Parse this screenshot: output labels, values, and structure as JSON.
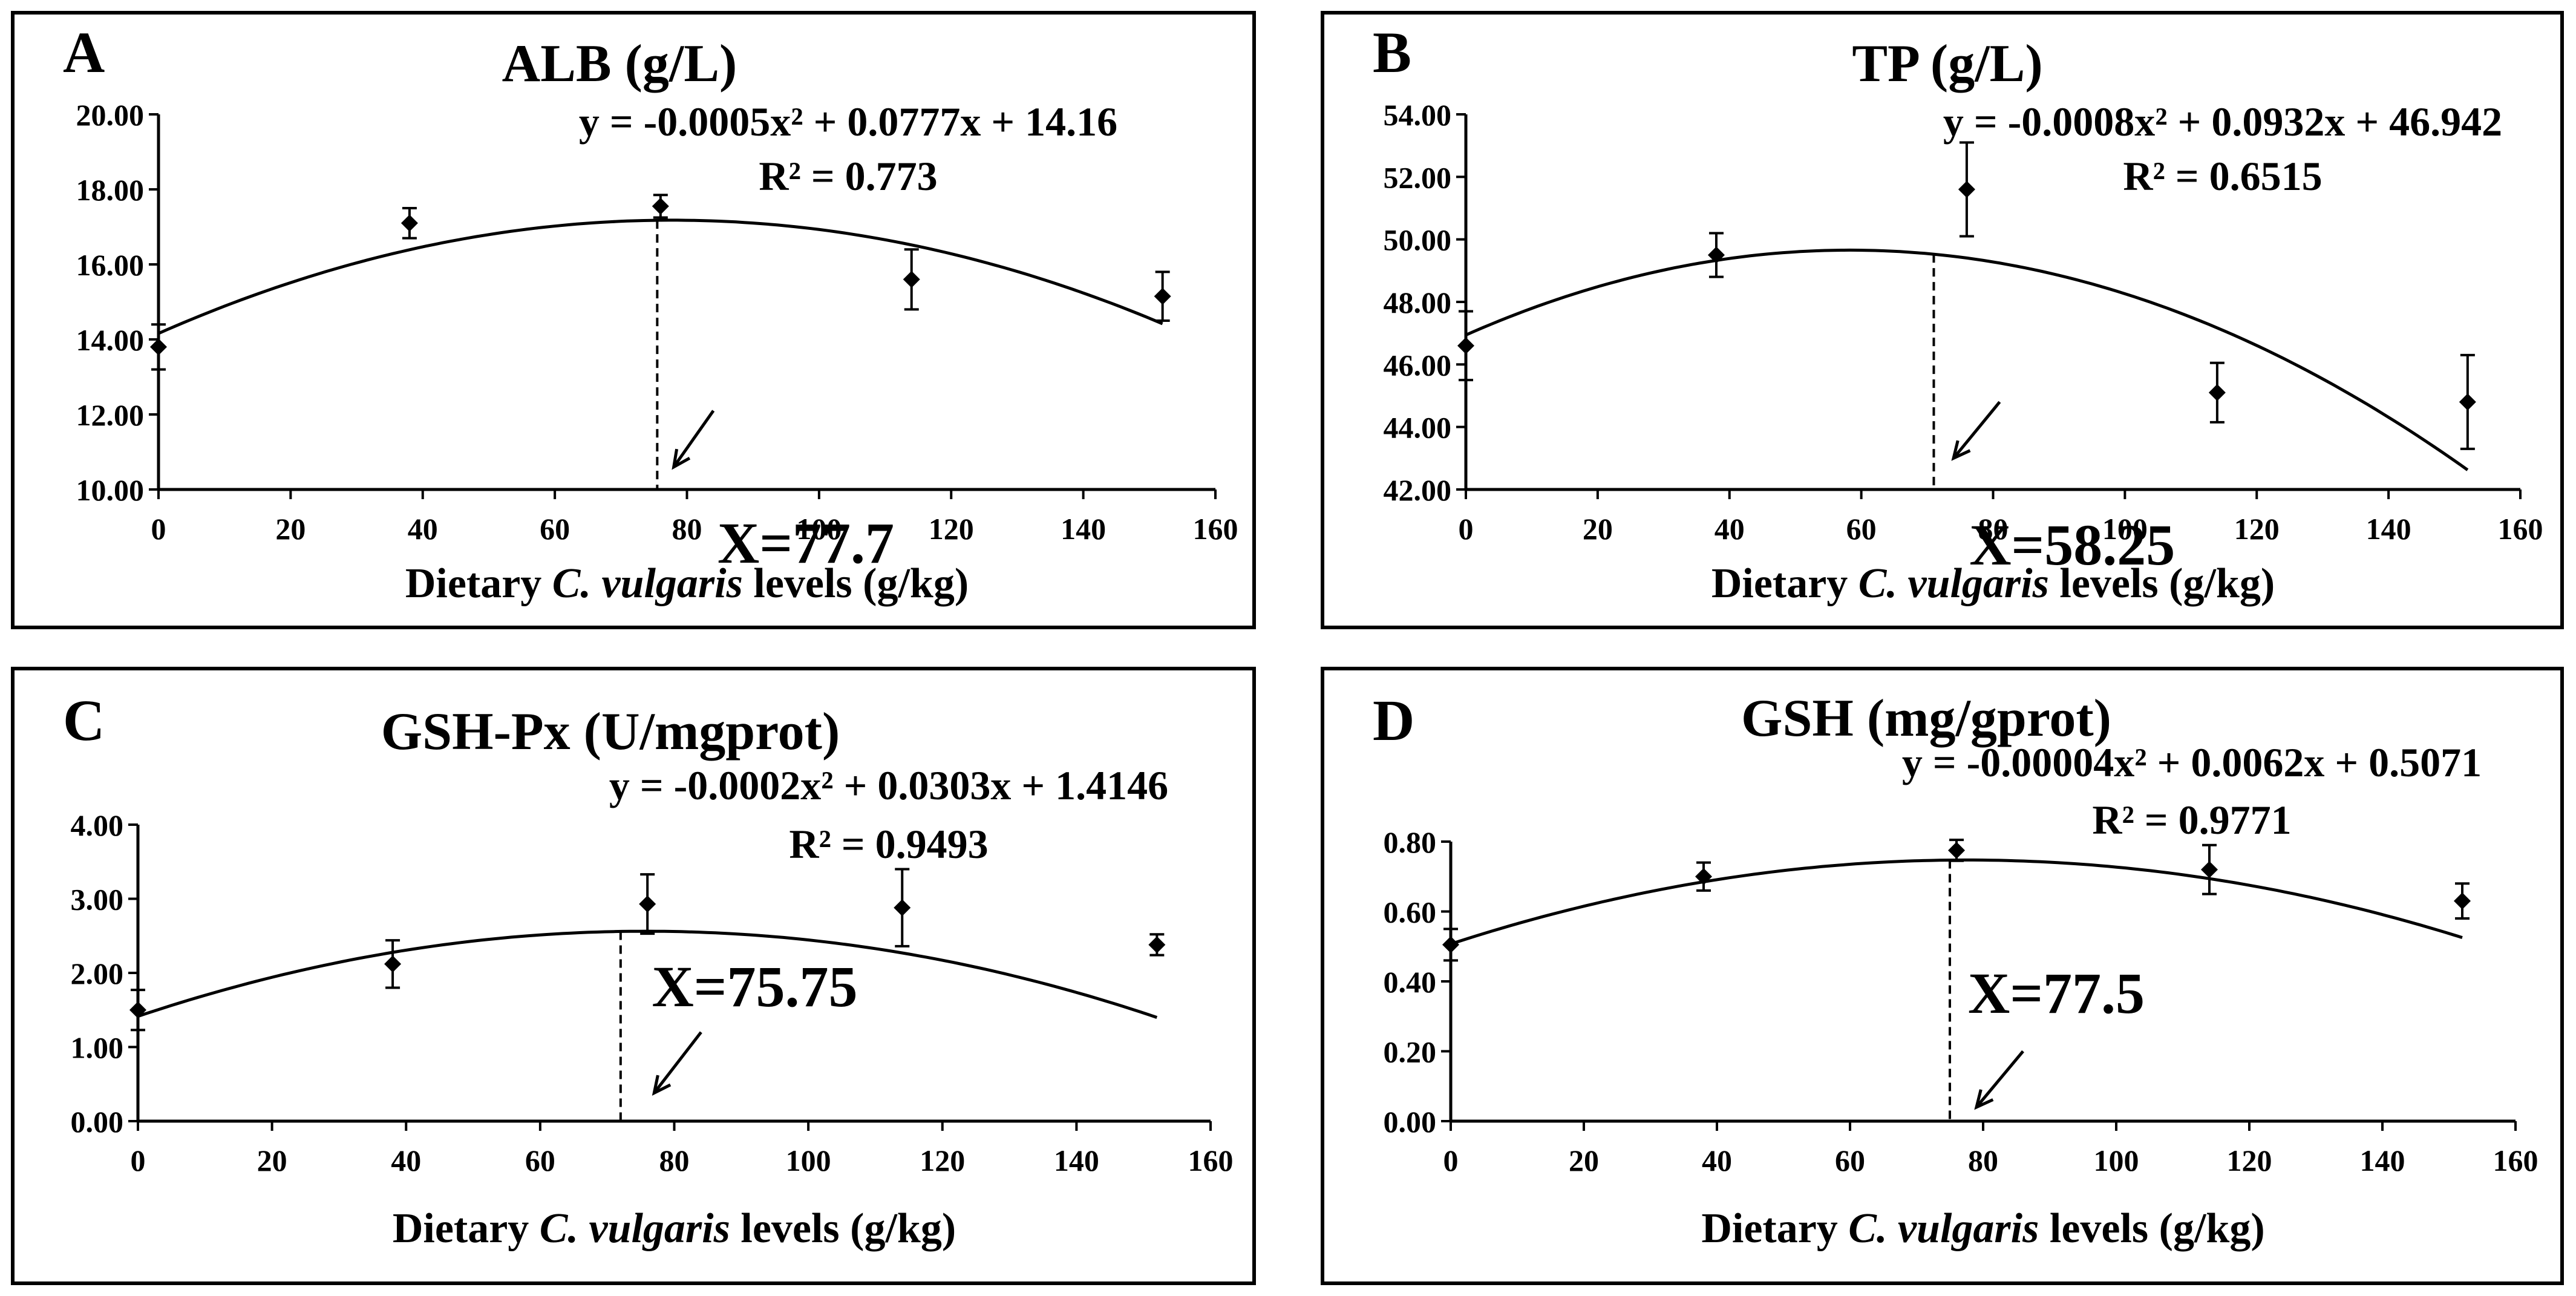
{
  "chart_data": [
    {
      "type": "scatter",
      "panel": "A",
      "title": "ALB (g/L)",
      "xlabel_parts": [
        "Dietary ",
        "C. vulgaris",
        " levels (g/kg)"
      ],
      "ylabel": "",
      "equation": "y = -0.0005x² + 0.0777x + 14.16",
      "r2": "R² = 0.773",
      "optimum_label": "X=77.7",
      "optimum_x": 75.5,
      "xlim": [
        0,
        160
      ],
      "ylim": [
        10,
        20
      ],
      "xticks": [
        0,
        20,
        40,
        60,
        80,
        100,
        120,
        140,
        160
      ],
      "xtick_labels": [
        "0",
        "20",
        "40",
        "60",
        "80",
        "100",
        "120",
        "140",
        "160"
      ],
      "yticks": [
        10,
        12,
        14,
        16,
        18,
        20
      ],
      "ytick_labels": [
        "10.00",
        "12.00",
        "14.00",
        "16.00",
        "18.00",
        "20.00"
      ],
      "x": [
        0,
        38,
        76,
        114,
        152
      ],
      "y": [
        13.8,
        17.1,
        17.55,
        15.6,
        15.15
      ],
      "err": [
        0.6,
        0.4,
        0.3,
        0.8,
        0.65
      ],
      "fit": [
        -0.0005,
        0.0777,
        14.16
      ],
      "fit_range": [
        0,
        152
      ],
      "arrow_label": [
        98,
        8.05
      ],
      "arrow_from": [
        84,
        12.1
      ],
      "arrow_to": [
        78,
        10.6
      ]
    },
    {
      "type": "scatter",
      "panel": "B",
      "title": "TP (g/L)",
      "xlabel_parts": [
        "Dietary ",
        "C. vulgaris",
        " levels (g/kg)"
      ],
      "ylabel": "",
      "equation": "y = -0.0008x² + 0.0932x + 46.942",
      "r2": "R² = 0.6515",
      "optimum_label": "X=58.25",
      "optimum_x": 71,
      "xlim": [
        0,
        160
      ],
      "ylim": [
        42,
        54
      ],
      "xticks": [
        0,
        20,
        40,
        60,
        80,
        100,
        120,
        140,
        160
      ],
      "xtick_labels": [
        "0",
        "20",
        "40",
        "60",
        "80",
        "100",
        "120",
        "140",
        "160"
      ],
      "yticks": [
        42,
        44,
        46,
        48,
        50,
        52,
        54
      ],
      "ytick_labels": [
        "42.00",
        "44.00",
        "46.00",
        "48.00",
        "50.00",
        "52.00",
        "54.00"
      ],
      "x": [
        0,
        38,
        76,
        114,
        152
      ],
      "y": [
        46.6,
        49.5,
        51.6,
        45.1,
        44.8
      ],
      "err": [
        1.1,
        0.7,
        1.5,
        0.95,
        1.5
      ],
      "fit": [
        -0.0008,
        0.0932,
        46.942
      ],
      "fit_range": [
        0,
        152
      ],
      "arrow_label": [
        92,
        39.6
      ],
      "arrow_from": [
        81,
        44.8
      ],
      "arrow_to": [
        74,
        43.0
      ]
    },
    {
      "type": "scatter",
      "panel": "C",
      "title": "GSH-Px (U/mgprot)",
      "xlabel_parts": [
        "Dietary ",
        "C. vulgaris",
        " levels (g/kg)"
      ],
      "ylabel": "",
      "equation": "y = -0.0002x² + 0.0303x + 1.4146",
      "r2": "R² = 0.9493",
      "optimum_label": "X=75.75",
      "optimum_x": 72,
      "xlim": [
        0,
        160
      ],
      "ylim": [
        0,
        4
      ],
      "xticks": [
        0,
        20,
        40,
        60,
        80,
        100,
        120,
        140,
        160
      ],
      "xtick_labels": [
        "0",
        "20",
        "40",
        "60",
        "80",
        "100",
        "120",
        "140",
        "160"
      ],
      "yticks": [
        0,
        1,
        2,
        3,
        4
      ],
      "ytick_labels": [
        "0.00",
        "1.00",
        "2.00",
        "3.00",
        "4.00"
      ],
      "x": [
        0,
        38,
        76,
        114,
        152
      ],
      "y": [
        1.5,
        2.12,
        2.93,
        2.88,
        2.38
      ],
      "err": [
        0.27,
        0.32,
        0.4,
        0.52,
        0.14
      ],
      "fit": [
        -0.0002,
        0.0303,
        1.4146
      ],
      "fit_range": [
        0,
        152
      ],
      "arrow_label": [
        92,
        1.55
      ],
      "arrow_from": [
        84,
        1.2
      ],
      "arrow_to": [
        77,
        0.38
      ]
    },
    {
      "type": "scatter",
      "panel": "D",
      "title": "GSH (mg/gprot)",
      "xlabel_parts": [
        "Dietary ",
        "C. vulgaris",
        " levels (g/kg)"
      ],
      "ylabel": "",
      "equation": "y = -0.00004x² + 0.0062x + 0.5071",
      "r2": "R² = 0.9771",
      "optimum_label": "X=77.5",
      "optimum_x": 75,
      "xlim": [
        0,
        160
      ],
      "ylim": [
        0,
        0.8
      ],
      "xticks": [
        0,
        20,
        40,
        60,
        80,
        100,
        120,
        140,
        160
      ],
      "xtick_labels": [
        "0",
        "20",
        "40",
        "60",
        "80",
        "100",
        "120",
        "140",
        "160"
      ],
      "yticks": [
        0,
        0.2,
        0.4,
        0.6,
        0.8
      ],
      "ytick_labels": [
        "0.00",
        "0.20",
        "0.40",
        "0.60",
        "0.80"
      ],
      "x": [
        0,
        38,
        76,
        114,
        152
      ],
      "y": [
        0.505,
        0.7,
        0.775,
        0.72,
        0.63
      ],
      "err": [
        0.045,
        0.04,
        0.03,
        0.07,
        0.05
      ],
      "fit": [
        -4e-05,
        0.0062,
        0.5071
      ],
      "fit_range": [
        0,
        152
      ],
      "arrow_label": [
        91,
        0.31
      ],
      "arrow_from": [
        86,
        0.2
      ],
      "arrow_to": [
        79,
        0.04
      ]
    }
  ]
}
